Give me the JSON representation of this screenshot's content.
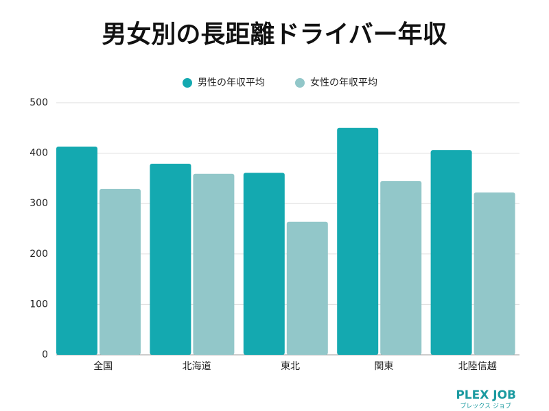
{
  "chart_data": {
    "type": "bar",
    "title": "男女別の長距離ドライバー年収",
    "categories": [
      "全国",
      "北海道",
      "東北",
      "関東",
      "北陸信越"
    ],
    "series": [
      {
        "name": "男性の年収平均",
        "color": "#14a9b0",
        "values": [
          413,
          379,
          361,
          450,
          406
        ]
      },
      {
        "name": "女性の年収平均",
        "color": "#92c7c9",
        "values": [
          329,
          359,
          264,
          345,
          322
        ]
      }
    ],
    "ylim": [
      0,
      500
    ],
    "yticks": [
      0,
      100,
      200,
      300,
      400,
      500
    ],
    "grid": true,
    "legend": "top"
  },
  "logo": {
    "name": "PLEX JOB",
    "sub": "プレックス ジョブ"
  }
}
